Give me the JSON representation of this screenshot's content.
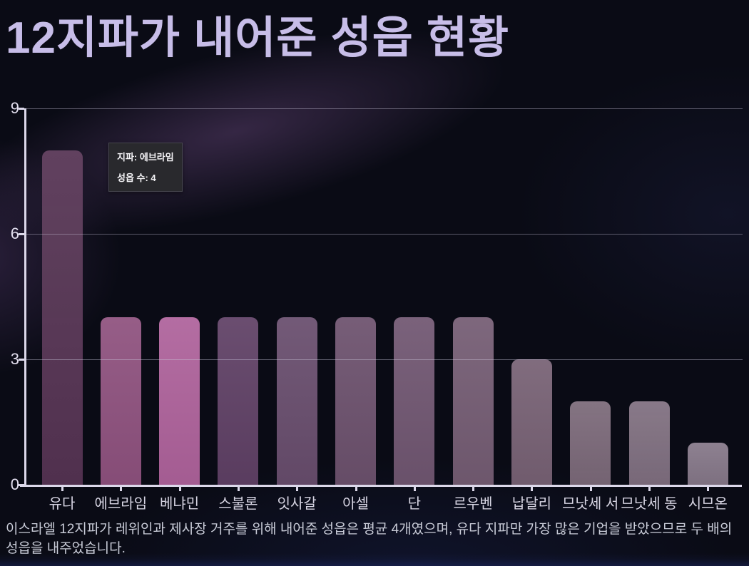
{
  "title": "12지파가 내어준 성읍 현황",
  "chart_data": {
    "type": "bar",
    "title": "12지파가 내어준 성읍 현황",
    "categories": [
      "유다",
      "에브라임",
      "베냐민",
      "스불론",
      "잇사갈",
      "아셀",
      "단",
      "르우벤",
      "납달리",
      "므낫세 서",
      "므낫세 동",
      "시므온"
    ],
    "values": [
      8,
      4,
      4,
      4,
      4,
      4,
      4,
      4,
      3,
      2,
      2,
      1
    ],
    "bar_colors": [
      "#553353",
      "#8e517e",
      "#ae629b",
      "#5f4065",
      "#684d6d",
      "#6c516d",
      "#705671",
      "#745c73",
      "#776174",
      "#7b6979",
      "#7f6f80",
      "#857788"
    ],
    "xlabel": "",
    "ylabel": "",
    "ylim": [
      0,
      9
    ],
    "yticks": [
      0,
      3,
      6,
      9
    ],
    "grid": "horizontal",
    "legend": "none"
  },
  "tooltip": {
    "line1": "지파: 에브라임",
    "line2": "성읍 수: 4"
  },
  "caption": "이스라엘 12지파가 레위인과 제사장 거주를 위해 내어준 성읍은 평균 4개였으며, 유다 지파만 가장 많은 기업을 받았으므로 두 배의 성읍을 내주었습니다.",
  "colors": {
    "background": "#0a0b15",
    "title_text": "#c7bde8",
    "axis": "#dcd8ea",
    "gridline": "rgba(202,198,220,0.42)",
    "tooltip_bg": "#29292d",
    "tooltip_text": "#f4f3f6",
    "caption_text": "#c9ccd8",
    "highlight_bar": "#ae629b"
  }
}
